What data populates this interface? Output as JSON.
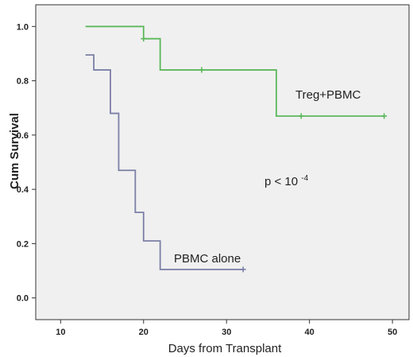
{
  "chart_data": {
    "type": "line",
    "subtype": "kaplan-meier step",
    "xlabel": "Days from Transplant",
    "ylabel": "Cum Survival",
    "xlim": [
      7,
      52
    ],
    "ylim": [
      -0.08,
      1.08
    ],
    "xticks": [
      10,
      20,
      30,
      40,
      50
    ],
    "xtick_labels": [
      "10",
      "20",
      "30",
      "40",
      "50"
    ],
    "yticks": [
      0.0,
      0.2,
      0.4,
      0.6,
      0.8,
      1.0
    ],
    "ytick_labels": [
      "0.0",
      "0.2",
      "0.4",
      "0.6",
      "0.8",
      "1.0"
    ],
    "grid": false,
    "plot_background": "#f0f0f0",
    "series": [
      {
        "name": "Treg+PBMC",
        "color": "#5cb85c",
        "steps": [
          [
            13,
            1.0
          ],
          [
            20,
            0.955
          ],
          [
            22,
            0.84
          ],
          [
            36,
            0.67
          ],
          [
            49,
            0.67
          ]
        ],
        "censored": [
          [
            20,
            0.955
          ],
          [
            27,
            0.84
          ],
          [
            39,
            0.67
          ],
          [
            49,
            0.67
          ]
        ]
      },
      {
        "name": "PBMC alone",
        "color": "#7b7fa6",
        "steps": [
          [
            13,
            0.895
          ],
          [
            14,
            0.84
          ],
          [
            16,
            0.68
          ],
          [
            17,
            0.47
          ],
          [
            19,
            0.315
          ],
          [
            20,
            0.21
          ],
          [
            22,
            0.105
          ],
          [
            32,
            0.105
          ]
        ],
        "censored": [
          [
            32,
            0.105
          ]
        ]
      }
    ],
    "annotations": {
      "p_value_base": "p < 10",
      "p_value_exp": "-4",
      "treg_label": "Treg+PBMC",
      "pbmc_label": "PBMC alone"
    }
  }
}
